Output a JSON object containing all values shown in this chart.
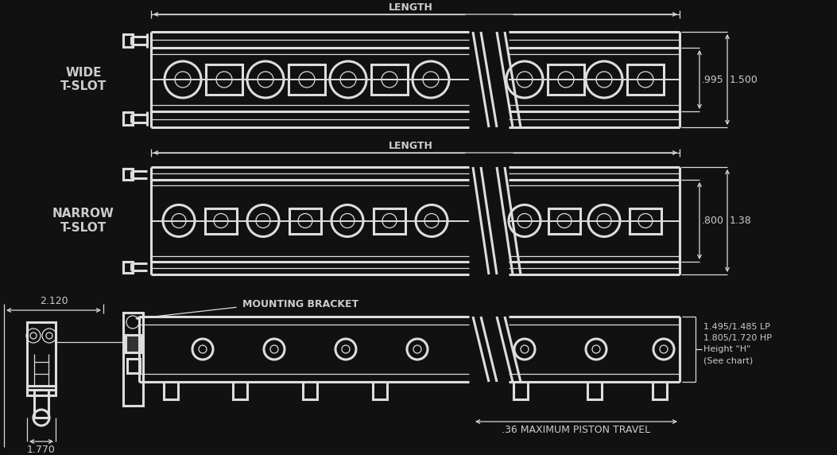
{
  "bg_color": "#111111",
  "line_color": "#dddddd",
  "text_color": "#cccccc",
  "wide_label": "WIDE\nT-SLOT",
  "narrow_label": "NARROW\nT-SLOT",
  "length_label": "LENGTH",
  "mounting_bracket_label": "MOUNTING BRACKET",
  "dim_995": ".995",
  "dim_1500": "1.500",
  "dim_800": ".800",
  "dim_138": "1.38",
  "dim_2120": "2.120",
  "dim_1770": "1.770",
  "dim_lp": "1.495/1.485 LP",
  "dim_hp": "1.805/1.720 HP",
  "dim_height": "Height \"H\"",
  "dim_see_chart": "(See chart)",
  "dim_piston": ".36 MAXIMUM PISTON TRAVEL",
  "figsize": [
    10.53,
    5.72
  ],
  "dpi": 100
}
